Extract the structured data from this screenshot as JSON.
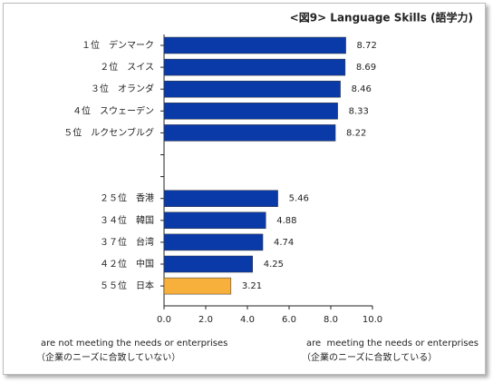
{
  "chart_data": {
    "type": "hbar",
    "title": "<図9> Language Skills (語学力)",
    "categories": [
      "１位　デンマーク",
      "２位　スイス",
      "３位　オランダ",
      "４位　スウェーデン",
      "５位　ルクセンブルグ",
      null,
      null,
      "２５位　香港",
      "３４位　韓国",
      "３７位　台湾",
      "４２位　中国",
      "５５位　日本"
    ],
    "values": [
      8.72,
      8.69,
      8.46,
      8.33,
      8.22,
      null,
      null,
      5.46,
      4.88,
      4.74,
      4.25,
      3.21
    ],
    "colors": [
      "#0a3aa8",
      "#0a3aa8",
      "#0a3aa8",
      "#0a3aa8",
      "#0a3aa8",
      null,
      null,
      "#0a3aa8",
      "#0a3aa8",
      "#0a3aa8",
      "#0a3aa8",
      "#f7b03c"
    ],
    "xlim": [
      0,
      10
    ],
    "xticks": [
      {
        "value": 0,
        "label": "0.0"
      },
      {
        "value": 2,
        "label": "2.0"
      },
      {
        "value": 4,
        "label": "4.0"
      },
      {
        "value": 6,
        "label": "6.0"
      },
      {
        "value": 8,
        "label": "8.0"
      },
      {
        "value": 10,
        "label": "10.0"
      }
    ],
    "annotations": [
      {
        "text": "are not meeting the needs or enterprises",
        "subtext": "（企業のニーズに合致していない）"
      },
      {
        "text": "are  meeting the needs or enterprises",
        "subtext": "（企業のニーズに合致している）"
      }
    ]
  }
}
